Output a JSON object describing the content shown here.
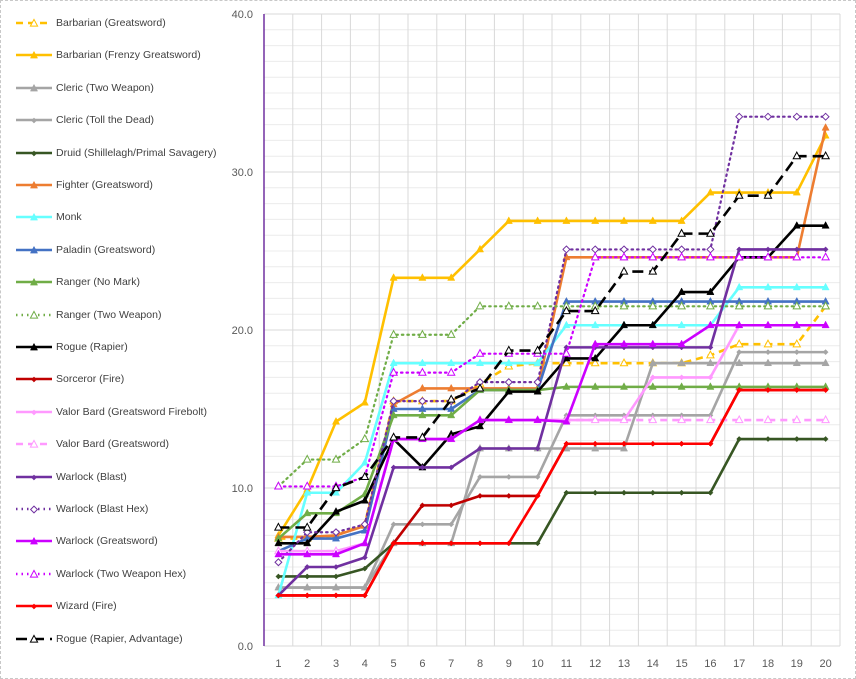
{
  "chart_data": {
    "type": "line",
    "title": "",
    "xlabel": "",
    "ylabel": "",
    "ylim": [
      0,
      40
    ],
    "yticks": [
      "0.0",
      "10.0",
      "20.0",
      "30.0",
      "40.0"
    ],
    "x": [
      1,
      2,
      3,
      4,
      5,
      6,
      7,
      8,
      9,
      10,
      11,
      12,
      13,
      14,
      15,
      16,
      17,
      18,
      19,
      20
    ],
    "grid": "on",
    "legend": "left",
    "series": [
      {
        "name": "Barbarian (Greatsword)",
        "color": "#FFC000",
        "dash": "dash",
        "marker": "triangle-open",
        "values": [
          6.8,
          6.8,
          7.0,
          7.7,
          15.5,
          15.5,
          15.5,
          16.6,
          17.7,
          17.9,
          17.9,
          17.9,
          17.9,
          17.9,
          17.9,
          18.4,
          19.1,
          19.1,
          19.1,
          21.5
        ]
      },
      {
        "name": "Barbarian (Frenzy Greatsword)",
        "color": "#FFC000",
        "dash": "solid",
        "marker": "triangle",
        "values": [
          7.0,
          9.9,
          14.2,
          15.4,
          23.3,
          23.3,
          23.3,
          25.1,
          26.9,
          26.9,
          26.9,
          26.9,
          26.9,
          26.9,
          26.9,
          28.7,
          28.7,
          28.7,
          28.7,
          32.3
        ]
      },
      {
        "name": "Cleric (Two Weapon)",
        "color": "#A5A5A5",
        "dash": "solid",
        "marker": "triangle",
        "values": [
          3.7,
          3.7,
          3.7,
          3.7,
          6.5,
          6.5,
          6.5,
          12.5,
          12.5,
          12.5,
          12.5,
          12.5,
          12.5,
          17.9,
          17.9,
          17.9,
          17.9,
          17.9,
          17.9,
          17.9
        ]
      },
      {
        "name": "Cleric (Toll the Dead)",
        "color": "#A5A5A5",
        "dash": "solid",
        "marker": "diamond",
        "values": [
          3.7,
          3.7,
          3.7,
          3.7,
          7.7,
          7.7,
          7.7,
          10.7,
          10.7,
          10.7,
          14.6,
          14.6,
          14.6,
          14.6,
          14.6,
          14.6,
          18.6,
          18.6,
          18.6,
          18.6
        ]
      },
      {
        "name": "Druid (Shillelagh/Primal Savagery)",
        "color": "#375623",
        "dash": "solid",
        "marker": "diamond",
        "values": [
          4.4,
          4.4,
          4.4,
          4.9,
          6.5,
          6.5,
          6.5,
          6.5,
          6.5,
          6.5,
          9.7,
          9.7,
          9.7,
          9.7,
          9.7,
          9.7,
          13.1,
          13.1,
          13.1,
          13.1
        ]
      },
      {
        "name": "Fighter (Greatsword)",
        "color": "#ED7D31",
        "dash": "solid",
        "marker": "triangle",
        "values": [
          6.9,
          6.9,
          7.0,
          7.6,
          15.3,
          16.3,
          16.3,
          16.3,
          16.3,
          16.3,
          24.6,
          24.6,
          24.6,
          24.6,
          24.6,
          24.6,
          24.6,
          24.6,
          24.6,
          32.8
        ]
      },
      {
        "name": "Monk",
        "color": "#66FFFF",
        "dash": "solid",
        "marker": "triangle",
        "values": [
          3.2,
          9.7,
          9.7,
          11.6,
          17.9,
          17.9,
          17.9,
          17.9,
          17.9,
          17.9,
          20.3,
          20.3,
          20.3,
          20.3,
          20.3,
          20.3,
          22.7,
          22.7,
          22.7,
          22.7
        ]
      },
      {
        "name": "Paladin (Greatsword)",
        "color": "#4472C4",
        "dash": "solid",
        "marker": "triangle",
        "values": [
          6.0,
          6.8,
          6.8,
          7.3,
          15.0,
          15.0,
          15.0,
          16.2,
          16.2,
          16.2,
          21.8,
          21.8,
          21.8,
          21.8,
          21.8,
          21.8,
          21.8,
          21.8,
          21.8,
          21.8
        ]
      },
      {
        "name": "Ranger (No Mark)",
        "color": "#70AD47",
        "dash": "solid",
        "marker": "triangle",
        "values": [
          6.8,
          8.4,
          8.4,
          9.6,
          14.6,
          14.6,
          14.6,
          16.2,
          16.2,
          16.2,
          16.4,
          16.4,
          16.4,
          16.4,
          16.4,
          16.4,
          16.4,
          16.4,
          16.4,
          16.4
        ]
      },
      {
        "name": "Ranger (Two Weapon)",
        "color": "#70AD47",
        "dash": "dot",
        "marker": "triangle-open",
        "values": [
          10.1,
          11.8,
          11.8,
          13.1,
          19.7,
          19.7,
          19.7,
          21.5,
          21.5,
          21.5,
          21.5,
          21.5,
          21.5,
          21.5,
          21.5,
          21.5,
          21.5,
          21.5,
          21.5,
          21.5
        ]
      },
      {
        "name": "Rogue (Rapier)",
        "color": "#000000",
        "dash": "solid",
        "marker": "triangle",
        "values": [
          6.5,
          6.5,
          8.5,
          9.2,
          13.1,
          11.3,
          13.4,
          13.9,
          16.1,
          16.1,
          18.2,
          18.2,
          20.3,
          20.3,
          22.4,
          22.4,
          24.6,
          24.6,
          26.6,
          26.6
        ]
      },
      {
        "name": "Sorceror (Fire)",
        "color": "#C00000",
        "dash": "solid",
        "marker": "diamond",
        "values": [
          3.2,
          3.2,
          3.2,
          3.2,
          6.5,
          8.9,
          8.9,
          9.5,
          9.5,
          9.5,
          12.8,
          12.8,
          12.8,
          12.8,
          12.8,
          12.8,
          16.2,
          16.2,
          16.2,
          16.2
        ]
      },
      {
        "name": "Valor Bard (Greatsword Firebolt)",
        "color": "#FF99FF",
        "dash": "solid",
        "marker": "diamond",
        "values": [
          6.0,
          6.0,
          6.0,
          6.5,
          13.1,
          13.1,
          13.1,
          14.3,
          14.3,
          14.3,
          14.3,
          14.3,
          14.3,
          17.0,
          17.0,
          17.0,
          20.3,
          20.3,
          20.3,
          20.3
        ]
      },
      {
        "name": "Valor Bard (Greatsword)",
        "color": "#FF99FF",
        "dash": "dash",
        "marker": "triangle-open",
        "values": [
          6.0,
          6.0,
          6.0,
          6.5,
          13.1,
          13.1,
          13.1,
          14.3,
          14.3,
          14.3,
          14.3,
          14.3,
          14.3,
          14.3,
          14.3,
          14.3,
          14.3,
          14.3,
          14.3,
          14.3
        ]
      },
      {
        "name": "Warlock (Blast)",
        "color": "#7030A0",
        "dash": "solid",
        "marker": "diamond",
        "values": [
          3.2,
          5.0,
          5.0,
          5.6,
          11.3,
          11.3,
          11.3,
          12.5,
          12.5,
          12.5,
          18.9,
          18.9,
          18.9,
          18.9,
          18.9,
          18.9,
          25.1,
          25.1,
          25.1,
          25.1
        ]
      },
      {
        "name": "Warlock (Blast Hex)",
        "color": "#7030A0",
        "dash": "dot",
        "marker": "diamond-open",
        "values": [
          5.3,
          7.2,
          7.2,
          7.7,
          15.5,
          15.5,
          15.5,
          16.7,
          16.7,
          16.7,
          25.1,
          25.1,
          25.1,
          25.1,
          25.1,
          25.1,
          33.5,
          33.5,
          33.5,
          33.5
        ]
      },
      {
        "name": "Warlock (Greatsword)",
        "color": "#CC00FF",
        "dash": "solid",
        "marker": "triangle",
        "values": [
          5.8,
          5.8,
          5.8,
          6.5,
          13.1,
          13.1,
          13.1,
          14.3,
          14.3,
          14.3,
          14.2,
          19.1,
          19.1,
          19.1,
          19.1,
          20.3,
          20.3,
          20.3,
          20.3,
          20.3
        ]
      },
      {
        "name": "Warlock (Two Weapon Hex)",
        "color": "#CC00FF",
        "dash": "dot",
        "marker": "triangle-open",
        "values": [
          10.1,
          10.1,
          10.1,
          10.7,
          17.3,
          17.3,
          17.3,
          18.5,
          18.5,
          18.5,
          18.5,
          24.6,
          24.6,
          24.6,
          24.6,
          24.6,
          24.6,
          24.6,
          24.6,
          24.6
        ]
      },
      {
        "name": "Wizard (Fire)",
        "color": "#FF0000",
        "dash": "solid",
        "marker": "diamond",
        "values": [
          3.2,
          3.2,
          3.2,
          3.2,
          6.5,
          6.5,
          6.5,
          6.5,
          6.5,
          9.5,
          12.8,
          12.8,
          12.8,
          12.8,
          12.8,
          12.8,
          16.2,
          16.2,
          16.2,
          16.2
        ]
      },
      {
        "name": "Rogue (Rapier, Advantage)",
        "color": "#000000",
        "dash": "longdash",
        "marker": "triangle-open",
        "values": [
          7.5,
          7.5,
          10.0,
          10.7,
          13.2,
          13.2,
          15.6,
          16.3,
          18.7,
          18.7,
          21.2,
          21.2,
          23.7,
          23.7,
          26.1,
          26.1,
          28.5,
          28.5,
          31.0,
          31.0
        ]
      }
    ]
  }
}
